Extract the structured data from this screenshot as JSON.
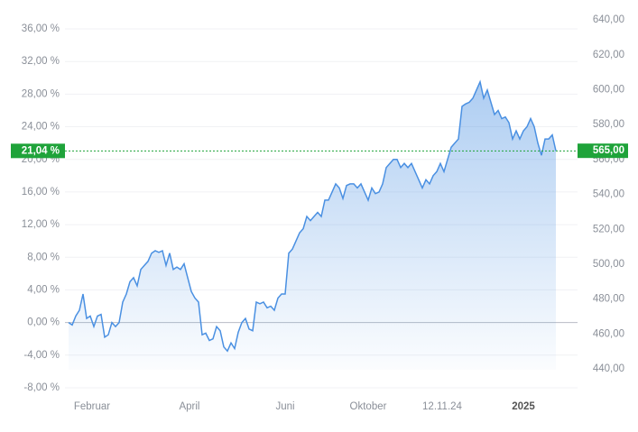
{
  "chart_data": {
    "type": "line",
    "series": [
      {
        "color": "#4a90e2",
        "values": [
          0,
          -0.3,
          0.8,
          1.5,
          3.5,
          0.5,
          0.8,
          -0.5,
          0.8,
          1.0,
          -1.8,
          -1.5,
          0,
          -0.5,
          0,
          2.5,
          3.5,
          5.0,
          5.5,
          4.5,
          6.5,
          7.0,
          7.5,
          8.5,
          8.8,
          8.6,
          8.8,
          7.0,
          8.5,
          6.5,
          6.8,
          6.5,
          7.2,
          5.5,
          3.8,
          3.0,
          2.5,
          -1.5,
          -1.3,
          -2.2,
          -2.0,
          -0.5,
          -1.0,
          -3.0,
          -3.5,
          -2.5,
          -3.2,
          -1.2,
          0,
          0.5,
          -0.8,
          -1.0,
          2.5,
          2.3,
          2.5,
          1.8,
          2.0,
          1.5,
          3.0,
          3.5,
          3.5,
          8.5,
          9.0,
          10.0,
          11.0,
          11.5,
          13.0,
          12.5,
          13.0,
          13.5,
          13.0,
          15.0,
          15.0,
          16.0,
          17.0,
          16.5,
          15.2,
          16.8,
          17.0,
          17.0,
          16.5,
          17.0,
          16.0,
          15.0,
          16.5,
          15.8,
          16.0,
          17.0,
          19.0,
          19.5,
          20.0,
          20.0,
          19.0,
          19.5,
          19.0,
          19.5,
          18.5,
          17.5,
          16.5,
          17.5,
          17.0,
          18.0,
          18.5,
          19.5,
          18.5,
          20.0,
          21.5,
          22.0,
          22.5,
          26.5,
          26.8,
          27.0,
          27.5,
          28.5,
          29.5,
          27.5,
          28.5,
          27.0,
          25.5,
          26.0,
          25.0,
          25.2,
          24.5,
          22.5,
          23.5,
          22.5,
          23.5,
          24.0,
          25.0,
          24.0,
          22.0,
          20.5,
          22.5,
          22.5,
          23.0,
          21.04
        ]
      }
    ],
    "xlim": [
      0,
      135
    ],
    "xticks": [
      {
        "value": 6.5,
        "label": "Februar"
      },
      {
        "value": 33.5,
        "label": "April"
      },
      {
        "value": 60,
        "label": "Juni"
      },
      {
        "value": 83,
        "label": "Oktober"
      },
      {
        "value": 103.5,
        "label": "12.11.24"
      },
      {
        "value": 126,
        "label": "2025"
      }
    ],
    "ylim": [
      -9.11,
      37.55
    ],
    "yticks": [
      {
        "value": -8,
        "label": "-8,00 %"
      },
      {
        "value": -4,
        "label": "-4,00 %"
      },
      {
        "value": 0,
        "label": "0,00 %"
      },
      {
        "value": 4,
        "label": "4,00 %"
      },
      {
        "value": 8,
        "label": "8,00 %"
      },
      {
        "value": 12,
        "label": "12,00 %"
      },
      {
        "value": 16,
        "label": "16,00 %"
      },
      {
        "value": 20,
        "label": "20,00 %"
      },
      {
        "value": 24,
        "label": "24,00 %"
      },
      {
        "value": 28,
        "label": "28,00 %"
      },
      {
        "value": 32,
        "label": "32,00 %"
      },
      {
        "value": 36,
        "label": "36,00 %"
      }
    ],
    "y2lim": [
      424,
      642.1
    ],
    "y2ticks": [
      {
        "value": 440,
        "label": "440,00"
      },
      {
        "value": 460,
        "label": "460,00"
      },
      {
        "value": 480,
        "label": "480,00"
      },
      {
        "value": 500,
        "label": "500,00"
      },
      {
        "value": 520,
        "label": "520,00"
      },
      {
        "value": 540,
        "label": "540,00"
      },
      {
        "value": 560,
        "label": "560,00"
      },
      {
        "value": 580,
        "label": "580,00"
      },
      {
        "value": 600,
        "label": "600,00"
      },
      {
        "value": 620,
        "label": "620,00"
      },
      {
        "value": 640,
        "label": "640,00"
      }
    ],
    "current": {
      "value": 21.04,
      "label": "21,04 %"
    },
    "current_y2": {
      "value": 565,
      "label": "565,00"
    },
    "marker_color": "#1fa33a",
    "grid": true
  }
}
